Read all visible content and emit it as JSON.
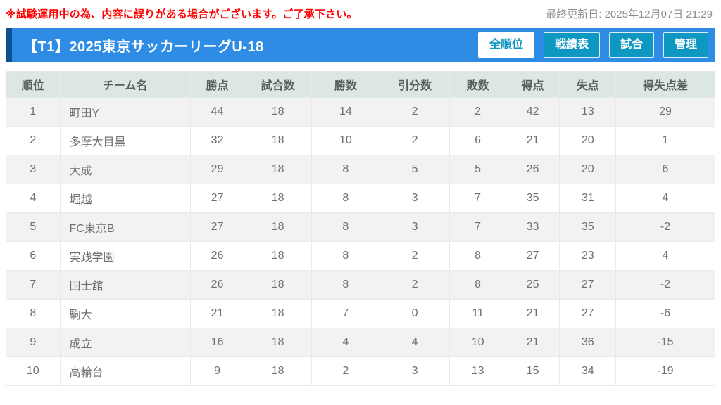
{
  "notice": {
    "text": "※試験運用中の為、内容に誤りがある場合がございます。ご了承下さい。"
  },
  "meta": {
    "last_updated": "最終更新日: 2025年12月07日 21:29"
  },
  "header": {
    "title": "【T1】2025東京サッカーリーグU-18",
    "tabs": [
      {
        "label": "全順位",
        "name": "tab-all-rankings",
        "active": true
      },
      {
        "label": "戦績表",
        "name": "tab-results-grid",
        "active": false
      },
      {
        "label": "試合",
        "name": "tab-matches",
        "active": false
      },
      {
        "label": "管理",
        "name": "tab-admin",
        "active": false
      }
    ]
  },
  "colors": {
    "notice_red": "#FF0000",
    "header_blue": "#2E8CE4",
    "header_accent_navy": "#0D5191",
    "tab_teal": "#0E97C0",
    "table_header_bg": "#DCE7E1",
    "row_stripe_gray": "#F2F2F2"
  },
  "table": {
    "columns": [
      "順位",
      "チーム名",
      "勝点",
      "試合数",
      "勝数",
      "引分数",
      "敗数",
      "得点",
      "失点",
      "得失点差"
    ],
    "rows": [
      [
        "1",
        "町田Y",
        "44",
        "18",
        "14",
        "2",
        "2",
        "42",
        "13",
        "29"
      ],
      [
        "2",
        "多摩大目黒",
        "32",
        "18",
        "10",
        "2",
        "6",
        "21",
        "20",
        "1"
      ],
      [
        "3",
        "大成",
        "29",
        "18",
        "8",
        "5",
        "5",
        "26",
        "20",
        "6"
      ],
      [
        "4",
        "堀越",
        "27",
        "18",
        "8",
        "3",
        "7",
        "35",
        "31",
        "4"
      ],
      [
        "5",
        "FC東京B",
        "27",
        "18",
        "8",
        "3",
        "7",
        "33",
        "35",
        "-2"
      ],
      [
        "6",
        "実践学園",
        "26",
        "18",
        "8",
        "2",
        "8",
        "27",
        "23",
        "4"
      ],
      [
        "7",
        "国士舘",
        "26",
        "18",
        "8",
        "2",
        "8",
        "25",
        "27",
        "-2"
      ],
      [
        "8",
        "駒大",
        "21",
        "18",
        "7",
        "0",
        "11",
        "21",
        "27",
        "-6"
      ],
      [
        "9",
        "成立",
        "16",
        "18",
        "4",
        "4",
        "10",
        "21",
        "36",
        "-15"
      ],
      [
        "10",
        "高輪台",
        "9",
        "18",
        "2",
        "3",
        "13",
        "15",
        "34",
        "-19"
      ]
    ]
  }
}
